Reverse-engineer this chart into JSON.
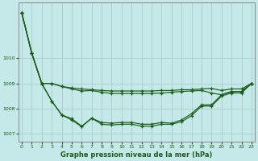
{
  "xlabel": "Graphe pression niveau de la mer (hPa)",
  "bg_color": "#c5e8e8",
  "grid_color": "#b0d0d0",
  "line_color": "#1a5c1a",
  "x": [
    0,
    1,
    2,
    3,
    4,
    5,
    6,
    7,
    8,
    9,
    10,
    11,
    12,
    13,
    14,
    15,
    16,
    17,
    18,
    19,
    20,
    21,
    22,
    23
  ],
  "line1": [
    1011.8,
    1010.2,
    1009.0,
    1009.0,
    1008.88,
    1008.82,
    1008.78,
    1008.75,
    1008.72,
    1008.7,
    1008.7,
    1008.7,
    1008.7,
    1008.7,
    1008.72,
    1008.72,
    1008.75,
    1008.75,
    1008.78,
    1008.8,
    1008.72,
    1008.78,
    1008.78,
    1009.0
  ],
  "line2": [
    1011.8,
    1010.2,
    1009.0,
    1009.0,
    1008.88,
    1008.78,
    1008.7,
    1008.72,
    1008.65,
    1008.6,
    1008.6,
    1008.6,
    1008.6,
    1008.6,
    1008.62,
    1008.65,
    1008.68,
    1008.7,
    1008.72,
    1008.62,
    1008.55,
    1008.68,
    1008.68,
    1009.0
  ],
  "line3": [
    1011.8,
    1010.2,
    1009.0,
    1008.3,
    1007.75,
    1007.6,
    1007.3,
    1007.62,
    1007.45,
    1007.42,
    1007.45,
    1007.45,
    1007.38,
    1007.38,
    1007.45,
    1007.42,
    1007.55,
    1007.8,
    1008.15,
    1008.15,
    1008.55,
    1008.68,
    1008.68,
    1009.0
  ],
  "line4": [
    1011.8,
    1010.2,
    1009.0,
    1008.3,
    1007.75,
    1007.55,
    1007.28,
    1007.62,
    1007.38,
    1007.35,
    1007.38,
    1007.38,
    1007.3,
    1007.3,
    1007.38,
    1007.38,
    1007.48,
    1007.72,
    1008.1,
    1008.1,
    1008.5,
    1008.62,
    1008.62,
    1009.0
  ],
  "ylim": [
    1006.7,
    1012.2
  ],
  "yticks": [
    1007,
    1008,
    1009,
    1010
  ],
  "xticks": [
    0,
    1,
    2,
    3,
    4,
    5,
    6,
    7,
    8,
    9,
    10,
    11,
    12,
    13,
    14,
    15,
    16,
    17,
    18,
    19,
    20,
    21,
    22,
    23
  ]
}
